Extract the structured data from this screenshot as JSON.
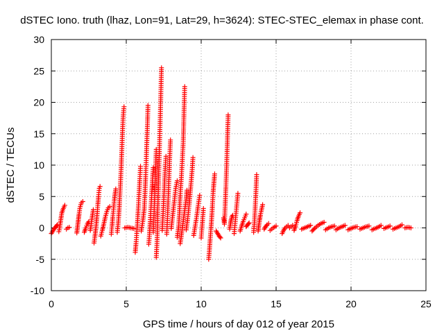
{
  "chart_data": {
    "type": "scatter",
    "title": "dSTEC Iono. truth (lhaz, Lon=91, Lat=29, h=3624): STEC-STEC_elemax in phase cont.",
    "xlabel": "GPS time / hours of day 012 of year 2015",
    "ylabel": "dSTEC  / TECUs",
    "xlim": [
      0,
      25
    ],
    "ylim": [
      -10,
      30
    ],
    "xticks": [
      0,
      5,
      10,
      15,
      20,
      25
    ],
    "yticks": [
      -10,
      -5,
      0,
      5,
      10,
      15,
      20,
      25,
      30
    ],
    "grid": true,
    "marker": "+",
    "color": "#ff0000",
    "arcs": [
      [
        [
          0.0,
          -0.9
        ],
        [
          0.1,
          -0.5
        ],
        [
          0.2,
          -0.1
        ],
        [
          0.3,
          0.2
        ],
        [
          0.4,
          0.5
        ]
      ],
      [
        [
          0.5,
          -0.6
        ],
        [
          0.55,
          0.0
        ],
        [
          0.6,
          0.8
        ],
        [
          0.65,
          1.6
        ],
        [
          0.7,
          2.4
        ],
        [
          0.8,
          3.1
        ],
        [
          0.9,
          3.6
        ]
      ],
      [
        [
          1.0,
          -0.2
        ],
        [
          1.1,
          0.0
        ],
        [
          1.2,
          0.1
        ]
      ],
      [
        [
          1.7,
          -0.8
        ],
        [
          1.75,
          0.2
        ],
        [
          1.8,
          1.2
        ],
        [
          1.85,
          2.2
        ],
        [
          1.9,
          3.1
        ],
        [
          2.0,
          4.0
        ],
        [
          2.1,
          4.2
        ]
      ],
      [
        [
          2.2,
          -0.7
        ],
        [
          2.3,
          0.0
        ],
        [
          2.4,
          0.6
        ],
        [
          2.5,
          1.0
        ]
      ],
      [
        [
          2.6,
          -0.4
        ],
        [
          2.65,
          0.4
        ],
        [
          2.7,
          1.3
        ],
        [
          2.75,
          2.1
        ],
        [
          2.8,
          2.9
        ]
      ],
      [
        [
          2.85,
          -2.4
        ],
        [
          2.9,
          -1.5
        ],
        [
          2.95,
          -0.5
        ],
        [
          3.0,
          0.6
        ],
        [
          3.05,
          2.0
        ],
        [
          3.1,
          3.6
        ],
        [
          3.15,
          5.0
        ],
        [
          3.2,
          6.3
        ],
        [
          3.25,
          6.6
        ]
      ],
      [
        [
          3.3,
          -1.3
        ],
        [
          3.4,
          -0.4
        ],
        [
          3.5,
          0.6
        ],
        [
          3.6,
          1.7
        ],
        [
          3.7,
          2.6
        ],
        [
          3.8,
          3.2
        ],
        [
          3.9,
          3.4
        ]
      ],
      [
        [
          4.0,
          -1.0
        ],
        [
          4.05,
          0.3
        ],
        [
          4.1,
          1.7
        ],
        [
          4.15,
          3.0
        ],
        [
          4.2,
          4.3
        ],
        [
          4.25,
          5.4
        ],
        [
          4.3,
          6.2
        ]
      ],
      [
        [
          4.4,
          -0.7
        ],
        [
          4.45,
          0.5
        ],
        [
          4.5,
          2.0
        ],
        [
          4.55,
          4.0
        ],
        [
          4.6,
          6.5
        ],
        [
          4.65,
          9.0
        ],
        [
          4.7,
          12.0
        ],
        [
          4.75,
          15.5
        ],
        [
          4.8,
          18.0
        ],
        [
          4.85,
          19.3
        ]
      ],
      [
        [
          4.9,
          0.0
        ],
        [
          5.1,
          0.1
        ],
        [
          5.3,
          0.0
        ],
        [
          5.5,
          -0.1
        ]
      ],
      [
        [
          5.6,
          -3.9
        ],
        [
          5.65,
          -2.5
        ],
        [
          5.7,
          -0.9
        ],
        [
          5.75,
          0.9
        ],
        [
          5.8,
          3.0
        ],
        [
          5.85,
          5.3
        ],
        [
          5.9,
          7.5
        ],
        [
          5.95,
          9.8
        ]
      ],
      [
        [
          6.0,
          -0.5
        ],
        [
          6.1,
          1.0
        ],
        [
          6.2,
          3.0
        ],
        [
          6.25,
          5.5
        ],
        [
          6.3,
          8.5
        ],
        [
          6.35,
          12.0
        ],
        [
          6.4,
          15.5
        ],
        [
          6.45,
          19.5
        ]
      ],
      [
        [
          6.5,
          -2.6
        ],
        [
          6.55,
          -1.0
        ],
        [
          6.6,
          1.0
        ],
        [
          6.65,
          3.3
        ],
        [
          6.7,
          5.5
        ],
        [
          6.75,
          7.5
        ],
        [
          6.8,
          9.6
        ]
      ],
      [
        [
          6.8,
          -0.7
        ],
        [
          6.85,
          2.0
        ],
        [
          6.9,
          5.2
        ],
        [
          6.95,
          8.8
        ],
        [
          7.0,
          12.5
        ]
      ],
      [
        [
          7.0,
          -4.7
        ],
        [
          7.05,
          -2.5
        ],
        [
          7.08,
          0.0
        ],
        [
          7.1,
          3.0
        ],
        [
          7.15,
          7.0
        ],
        [
          7.2,
          11.5
        ],
        [
          7.25,
          16.0
        ],
        [
          7.3,
          20.5
        ],
        [
          7.35,
          25.5
        ]
      ],
      [
        [
          7.4,
          -0.4
        ],
        [
          7.45,
          2.0
        ],
        [
          7.5,
          4.5
        ],
        [
          7.55,
          7.0
        ],
        [
          7.6,
          9.5
        ],
        [
          7.65,
          11.4
        ]
      ],
      [
        [
          7.7,
          -1.0
        ],
        [
          7.75,
          1.5
        ],
        [
          7.8,
          4.8
        ],
        [
          7.85,
          8.0
        ],
        [
          7.9,
          11.2
        ],
        [
          7.95,
          14.0
        ]
      ],
      [
        [
          8.0,
          -0.1
        ],
        [
          8.1,
          2.0
        ],
        [
          8.2,
          4.1
        ],
        [
          8.3,
          6.3
        ],
        [
          8.4,
          7.5
        ]
      ],
      [
        [
          8.4,
          -1.5
        ],
        [
          8.5,
          0.3
        ],
        [
          8.55,
          2.5
        ],
        [
          8.6,
          5.2
        ],
        [
          8.7,
          9.0
        ],
        [
          8.8,
          13.5
        ],
        [
          8.85,
          18.0
        ],
        [
          8.9,
          22.5
        ]
      ],
      [
        [
          8.6,
          -2.5
        ],
        [
          8.7,
          -0.8
        ],
        [
          8.8,
          1.0
        ],
        [
          8.9,
          2.8
        ],
        [
          9.0,
          4.6
        ],
        [
          9.05,
          6.0
        ]
      ],
      [
        [
          9.0,
          -0.3
        ],
        [
          9.1,
          1.5
        ],
        [
          9.2,
          3.8
        ],
        [
          9.3,
          6.5
        ],
        [
          9.4,
          9.3
        ],
        [
          9.45,
          11.2
        ]
      ],
      [
        [
          9.5,
          -1.2
        ],
        [
          9.6,
          0.3
        ],
        [
          9.7,
          1.8
        ],
        [
          9.8,
          3.6
        ],
        [
          9.9,
          5.2
        ]
      ],
      [
        [
          10.0,
          -1.6
        ],
        [
          10.05,
          0.0
        ],
        [
          10.1,
          1.5
        ],
        [
          10.15,
          3.1
        ]
      ],
      [
        [
          10.5,
          -5.0
        ],
        [
          10.55,
          -3.5
        ],
        [
          10.6,
          -1.8
        ],
        [
          10.65,
          -0.2
        ],
        [
          10.7,
          1.5
        ],
        [
          10.75,
          3.5
        ],
        [
          10.8,
          5.8
        ],
        [
          10.85,
          7.2
        ],
        [
          10.9,
          8.6
        ]
      ],
      [
        [
          11.0,
          -0.5
        ],
        [
          11.1,
          -0.9
        ],
        [
          11.2,
          -1.3
        ],
        [
          11.3,
          -1.6
        ]
      ],
      [
        [
          11.5,
          1.6
        ],
        [
          11.55,
          0.6
        ],
        [
          11.6,
          3.5
        ],
        [
          11.65,
          6.5
        ],
        [
          11.7,
          10.0
        ],
        [
          11.75,
          14.0
        ],
        [
          11.8,
          18.0
        ]
      ],
      [
        [
          11.9,
          -0.2
        ],
        [
          11.95,
          0.6
        ],
        [
          12.0,
          1.3
        ],
        [
          12.05,
          1.8
        ],
        [
          12.1,
          2.0
        ]
      ],
      [
        [
          12.2,
          -0.9
        ],
        [
          12.25,
          0.4
        ],
        [
          12.3,
          1.7
        ],
        [
          12.35,
          3.0
        ],
        [
          12.4,
          4.3
        ],
        [
          12.45,
          5.5
        ]
      ],
      [
        [
          12.6,
          -0.5
        ],
        [
          12.7,
          0.3
        ],
        [
          12.8,
          1.0
        ],
        [
          12.9,
          1.6
        ],
        [
          13.0,
          2.2
        ]
      ],
      [
        [
          13.0,
          0.2
        ],
        [
          13.1,
          0.5
        ],
        [
          13.2,
          0.8
        ]
      ],
      [
        [
          13.5,
          -0.7
        ],
        [
          13.55,
          0.8
        ],
        [
          13.6,
          3.0
        ],
        [
          13.65,
          5.5
        ],
        [
          13.7,
          8.5
        ]
      ],
      [
        [
          13.8,
          -0.5
        ],
        [
          13.85,
          0.5
        ],
        [
          13.9,
          1.3
        ],
        [
          13.95,
          2.0
        ],
        [
          14.0,
          2.6
        ],
        [
          14.1,
          3.7
        ]
      ],
      [
        [
          14.2,
          -0.2
        ],
        [
          14.3,
          0.2
        ],
        [
          14.4,
          0.5
        ],
        [
          14.5,
          0.7
        ]
      ],
      [
        [
          14.6,
          -0.4
        ],
        [
          14.8,
          0.0
        ],
        [
          15.0,
          0.3
        ]
      ],
      [
        [
          15.4,
          -0.9
        ],
        [
          15.5,
          -0.4
        ],
        [
          15.6,
          0.0
        ],
        [
          15.8,
          0.4
        ]
      ],
      [
        [
          15.9,
          0.0
        ],
        [
          16.0,
          0.2
        ],
        [
          16.1,
          0.4
        ]
      ],
      [
        [
          16.2,
          -0.4
        ],
        [
          16.3,
          0.3
        ],
        [
          16.4,
          1.2
        ],
        [
          16.5,
          1.9
        ],
        [
          16.6,
          2.4
        ]
      ],
      [
        [
          16.7,
          -0.2
        ],
        [
          16.9,
          0.0
        ],
        [
          17.1,
          0.2
        ],
        [
          17.3,
          0.4
        ]
      ],
      [
        [
          17.4,
          -0.5
        ],
        [
          17.6,
          0.0
        ],
        [
          17.8,
          0.4
        ],
        [
          18.0,
          0.7
        ],
        [
          18.2,
          0.9
        ]
      ],
      [
        [
          18.3,
          -0.3
        ],
        [
          18.5,
          0.0
        ],
        [
          18.7,
          0.2
        ],
        [
          18.9,
          0.3
        ]
      ],
      [
        [
          19.0,
          -0.3
        ],
        [
          19.2,
          0.0
        ],
        [
          19.4,
          0.2
        ],
        [
          19.6,
          0.4
        ]
      ],
      [
        [
          19.8,
          -0.3
        ],
        [
          20.0,
          -0.1
        ],
        [
          20.2,
          0.1
        ],
        [
          20.4,
          0.2
        ]
      ],
      [
        [
          20.6,
          -0.2
        ],
        [
          20.8,
          0.0
        ],
        [
          21.0,
          0.2
        ],
        [
          21.2,
          0.3
        ]
      ],
      [
        [
          21.4,
          -0.3
        ],
        [
          21.6,
          -0.1
        ],
        [
          21.8,
          0.1
        ],
        [
          22.0,
          0.4
        ]
      ],
      [
        [
          22.2,
          -0.1
        ],
        [
          22.4,
          0.1
        ],
        [
          22.6,
          0.3
        ]
      ],
      [
        [
          22.8,
          -0.2
        ],
        [
          23.0,
          0.0
        ],
        [
          23.2,
          0.2
        ],
        [
          23.4,
          0.5
        ]
      ],
      [
        [
          23.6,
          0.0
        ],
        [
          23.8,
          0.1
        ],
        [
          24.0,
          0.0
        ]
      ]
    ]
  }
}
